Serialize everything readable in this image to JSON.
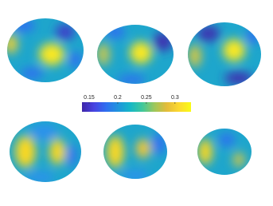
{
  "chart_data": {
    "type": "colorbar",
    "clim": [
      0.1375,
      0.328
    ],
    "ticks": [
      0.15,
      0.2,
      0.25,
      0.3
    ],
    "colormap": [
      "#3e26a8",
      "#4743e2",
      "#2f6ff0",
      "#1f95dd",
      "#16b8c6",
      "#41c89a",
      "#9fc75a",
      "#e4bc3a",
      "#fcd930",
      "#f9fb15"
    ]
  }
}
